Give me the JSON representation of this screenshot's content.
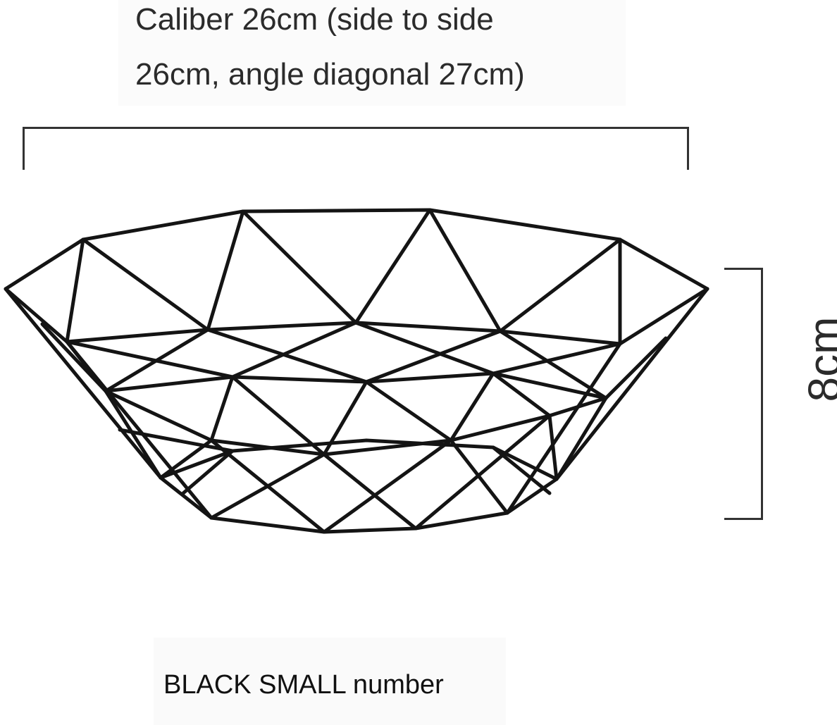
{
  "dimensions": {
    "caliber_line1": "Caliber 26cm (side to side",
    "caliber_line2": "26cm, angle diagonal 27cm)",
    "height_label": "8cm"
  },
  "product": {
    "label": "BLACK SMALL number",
    "image_description_icon": "wire-fruit-basket"
  },
  "colors": {
    "wire": "#141414",
    "bracket": "#333333",
    "background": "#ffffff"
  }
}
